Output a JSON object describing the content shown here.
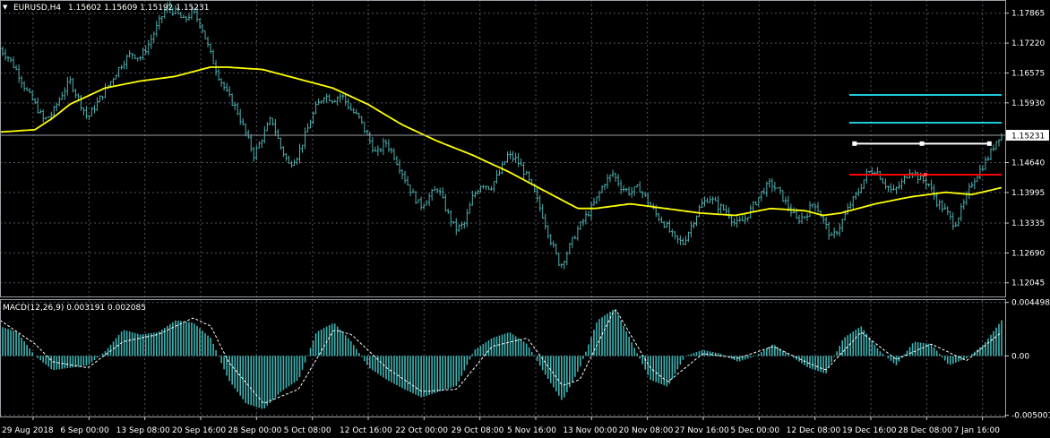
{
  "header": {
    "symbol_text": "EURUSD,H4",
    "ohlc_text": "1.15602 1.15609 1.15192 1.15231"
  },
  "colors": {
    "background": "#000000",
    "grid": "#6b7280",
    "candle": "#4fb0b0",
    "ma": "#ffff00",
    "macd_hist": "#3fb3b3",
    "macd_signal": "#ffffff",
    "cyan_level": "#20c8d8",
    "white_level": "#ffffff",
    "red_level": "#ff0000",
    "axis_text": "#ffffff"
  },
  "chart_data": [
    {
      "type": "line",
      "title": "EURUSD,H4",
      "subtitle": "1.15602 1.15609 1.15192 1.15231",
      "ylim": [
        1.1175,
        1.1815
      ],
      "y_ticks": [
        "1.17865",
        "1.17220",
        "1.16575",
        "1.15930",
        "1.14640",
        "1.13995",
        "1.13335",
        "1.12690",
        "1.12045"
      ],
      "current_price": "1.15231",
      "x_tick_labels": [
        "29 Aug 2018",
        "6 Sep 00:00",
        "13 Sep 08:00",
        "20 Sep 16:00",
        "28 Sep 00:00",
        "5 Oct 08:00",
        "12 Oct 16:00",
        "22 Oct 00:00",
        "29 Oct 08:00",
        "5 Nov 16:00",
        "13 Nov 00:00",
        "20 Nov 08:00",
        "27 Nov 16:00",
        "5 Dec 00:00",
        "12 Dec 08:00",
        "19 Dec 16:00",
        "28 Dec 08:00",
        "7 Jan 16:00"
      ],
      "price_path": [
        [
          0,
          1.171
        ],
        [
          0.5,
          1.169
        ],
        [
          1,
          1.166
        ],
        [
          1.5,
          1.162
        ],
        [
          2,
          1.159
        ],
        [
          2.5,
          1.1555
        ],
        [
          3,
          1.157
        ],
        [
          3.5,
          1.161
        ],
        [
          4,
          1.164
        ],
        [
          4.5,
          1.16
        ],
        [
          5,
          1.156
        ],
        [
          5.5,
          1.159
        ],
        [
          6,
          1.162
        ],
        [
          6.5,
          1.165
        ],
        [
          7,
          1.168
        ],
        [
          7.5,
          1.17
        ],
        [
          8,
          1.169
        ],
        [
          8.5,
          1.172
        ],
        [
          9,
          1.176
        ],
        [
          9.5,
          1.18
        ],
        [
          10,
          1.179
        ],
        [
          10.5,
          1.177
        ],
        [
          11,
          1.179
        ],
        [
          11.5,
          1.176
        ],
        [
          12,
          1.17
        ],
        [
          12.5,
          1.165
        ],
        [
          13,
          1.161
        ],
        [
          13.5,
          1.158
        ],
        [
          14,
          1.153
        ],
        [
          14.5,
          1.148
        ],
        [
          15,
          1.152
        ],
        [
          15.5,
          1.156
        ],
        [
          16,
          1.15
        ],
        [
          16.5,
          1.146
        ],
        [
          17,
          1.148
        ],
        [
          17.5,
          1.153
        ],
        [
          18,
          1.158
        ],
        [
          18.5,
          1.161
        ],
        [
          19,
          1.16
        ],
        [
          19.5,
          1.161
        ],
        [
          20,
          1.158
        ],
        [
          20.5,
          1.156
        ],
        [
          21,
          1.152
        ],
        [
          21.5,
          1.148
        ],
        [
          22,
          1.151
        ],
        [
          22.5,
          1.148
        ],
        [
          23,
          1.144
        ],
        [
          23.5,
          1.14
        ],
        [
          24,
          1.137
        ],
        [
          24.5,
          1.139
        ],
        [
          25,
          1.141
        ],
        [
          25.5,
          1.136
        ],
        [
          26,
          1.132
        ],
        [
          26.5,
          1.133
        ],
        [
          27,
          1.139
        ],
        [
          27.5,
          1.142
        ],
        [
          28,
          1.141
        ],
        [
          28.5,
          1.144
        ],
        [
          29,
          1.148
        ],
        [
          29.5,
          1.147
        ],
        [
          30,
          1.144
        ],
        [
          30.5,
          1.14
        ],
        [
          31,
          1.135
        ],
        [
          31.5,
          1.129
        ],
        [
          32,
          1.124
        ],
        [
          32.5,
          1.128
        ],
        [
          33,
          1.132
        ],
        [
          33.5,
          1.135
        ],
        [
          34,
          1.138
        ],
        [
          34.5,
          1.142
        ],
        [
          35,
          1.144
        ],
        [
          35.5,
          1.141
        ],
        [
          36,
          1.14
        ],
        [
          36.5,
          1.141
        ],
        [
          37,
          1.138
        ],
        [
          37.5,
          1.135
        ],
        [
          38,
          1.133
        ],
        [
          38.5,
          1.13
        ],
        [
          39,
          1.129
        ],
        [
          39.5,
          1.133
        ],
        [
          40,
          1.137
        ],
        [
          40.5,
          1.139
        ],
        [
          41,
          1.137
        ],
        [
          41.5,
          1.136
        ],
        [
          42,
          1.133
        ],
        [
          42.5,
          1.134
        ],
        [
          43,
          1.137
        ],
        [
          43.5,
          1.14
        ],
        [
          44,
          1.142
        ],
        [
          44.5,
          1.14
        ],
        [
          45,
          1.137
        ],
        [
          45.5,
          1.134
        ],
        [
          46,
          1.135
        ],
        [
          46.5,
          1.138
        ],
        [
          47,
          1.134
        ],
        [
          47.5,
          1.13
        ],
        [
          48,
          1.133
        ],
        [
          48.5,
          1.137
        ],
        [
          49,
          1.14
        ],
        [
          49.5,
          1.144
        ],
        [
          50,
          1.145
        ],
        [
          50.5,
          1.142
        ],
        [
          51,
          1.14
        ],
        [
          51.5,
          1.142
        ],
        [
          52,
          1.145
        ],
        [
          52.5,
          1.143
        ],
        [
          53,
          1.142
        ],
        [
          53.5,
          1.138
        ],
        [
          54,
          1.136
        ],
        [
          54.5,
          1.133
        ],
        [
          55,
          1.137
        ],
        [
          55.5,
          1.142
        ],
        [
          56,
          1.145
        ],
        [
          56.5,
          1.148
        ],
        [
          57,
          1.152
        ],
        [
          57.2,
          1.1523
        ]
      ],
      "x_range": [
        0,
        57.2
      ],
      "ma_path": [
        [
          0,
          1.153
        ],
        [
          2,
          1.1535
        ],
        [
          3,
          1.156
        ],
        [
          4,
          1.159
        ],
        [
          6,
          1.1625
        ],
        [
          8,
          1.164
        ],
        [
          10,
          1.165
        ],
        [
          12,
          1.167
        ],
        [
          13,
          1.167
        ],
        [
          15,
          1.1665
        ],
        [
          17,
          1.1645
        ],
        [
          19,
          1.1625
        ],
        [
          21,
          1.159
        ],
        [
          23,
          1.1545
        ],
        [
          25,
          1.151
        ],
        [
          27,
          1.148
        ],
        [
          29,
          1.1445
        ],
        [
          31,
          1.1405
        ],
        [
          33,
          1.1365
        ],
        [
          34,
          1.1365
        ],
        [
          36,
          1.1375
        ],
        [
          38,
          1.1365
        ],
        [
          40,
          1.1355
        ],
        [
          42,
          1.135
        ],
        [
          44,
          1.1365
        ],
        [
          46,
          1.136
        ],
        [
          47,
          1.135
        ],
        [
          48,
          1.1355
        ],
        [
          50,
          1.1375
        ],
        [
          52,
          1.139
        ],
        [
          54,
          1.14
        ],
        [
          55.5,
          1.1395
        ],
        [
          57.2,
          1.141
        ]
      ],
      "levels": [
        {
          "price": 1.161,
          "color_key": "cyan_level",
          "x_start": 48.5,
          "x_end": 57.2
        },
        {
          "price": 1.155,
          "color_key": "cyan_level",
          "x_start": 48.5,
          "x_end": 57.2
        },
        {
          "price": 1.1505,
          "color_key": "white_level",
          "x_start": 48.8,
          "x_end": 56.5
        },
        {
          "price": 1.1438,
          "color_key": "red_level",
          "x_start": 48.5,
          "x_end": 57.2
        }
      ]
    },
    {
      "type": "bar",
      "title": "MACD(12,26,9) 0.003191 0.002085",
      "ylim": [
        -0.0051,
        0.0047
      ],
      "y_ticks": [
        "0.004498",
        "0.00",
        "-0.005001"
      ],
      "hist_path": [
        [
          0,
          0.0025
        ],
        [
          1,
          0.002
        ],
        [
          2,
          0.0
        ],
        [
          3,
          -0.0012
        ],
        [
          4,
          -0.001
        ],
        [
          5,
          -0.0008
        ],
        [
          6,
          0.0004
        ],
        [
          7,
          0.0022
        ],
        [
          8,
          0.0018
        ],
        [
          9,
          0.002
        ],
        [
          10,
          0.003
        ],
        [
          11,
          0.0028
        ],
        [
          12,
          0.0015
        ],
        [
          13,
          -0.002
        ],
        [
          14,
          -0.004
        ],
        [
          15,
          -0.0045
        ],
        [
          16,
          -0.003
        ],
        [
          17,
          -0.002
        ],
        [
          18,
          0.002
        ],
        [
          19,
          0.0028
        ],
        [
          20,
          0.0012
        ],
        [
          21,
          -0.001
        ],
        [
          22,
          -0.002
        ],
        [
          23,
          -0.0028
        ],
        [
          24,
          -0.0035
        ],
        [
          25,
          -0.003
        ],
        [
          26,
          -0.0025
        ],
        [
          27,
          0.0005
        ],
        [
          28,
          0.0015
        ],
        [
          29,
          0.002
        ],
        [
          30,
          0.001
        ],
        [
          31,
          -0.0015
        ],
        [
          32,
          -0.0038
        ],
        [
          33,
          -0.001
        ],
        [
          34,
          0.003
        ],
        [
          35,
          0.004
        ],
        [
          36,
          0.001
        ],
        [
          37,
          -0.002
        ],
        [
          38,
          -0.0026
        ],
        [
          39,
          0.0
        ],
        [
          40,
          0.0005
        ],
        [
          41,
          0.0002
        ],
        [
          42,
          -0.0005
        ],
        [
          43,
          0.0
        ],
        [
          44,
          0.001
        ],
        [
          45,
          0.0
        ],
        [
          46,
          -0.001
        ],
        [
          47,
          -0.0015
        ],
        [
          48,
          0.0015
        ],
        [
          49,
          0.0025
        ],
        [
          50,
          0.0005
        ],
        [
          51,
          -0.0008
        ],
        [
          52,
          0.0012
        ],
        [
          53,
          0.001
        ],
        [
          54,
          -0.0008
        ],
        [
          55,
          -0.0002
        ],
        [
          56,
          0.001
        ],
        [
          57,
          0.003
        ]
      ],
      "signal_path": [
        [
          0,
          0.003
        ],
        [
          2,
          0.001
        ],
        [
          3,
          -0.0005
        ],
        [
          5,
          -0.001
        ],
        [
          7,
          0.0012
        ],
        [
          9,
          0.0018
        ],
        [
          11,
          0.0032
        ],
        [
          12,
          0.0025
        ],
        [
          13,
          -0.0005
        ],
        [
          15,
          -0.004
        ],
        [
          17,
          -0.0028
        ],
        [
          19,
          0.0022
        ],
        [
          20,
          0.0018
        ],
        [
          22,
          -0.001
        ],
        [
          24,
          -0.003
        ],
        [
          26,
          -0.0028
        ],
        [
          28,
          0.0008
        ],
        [
          30,
          0.0015
        ],
        [
          32,
          -0.0025
        ],
        [
          33,
          -0.002
        ],
        [
          35,
          0.004
        ],
        [
          37,
          -0.001
        ],
        [
          38,
          -0.0022
        ],
        [
          40,
          0.0002
        ],
        [
          42,
          -0.0002
        ],
        [
          44,
          0.0008
        ],
        [
          46,
          -0.0006
        ],
        [
          47,
          -0.0012
        ],
        [
          49,
          0.002
        ],
        [
          51,
          -0.0003
        ],
        [
          53,
          0.001
        ],
        [
          55,
          -0.0004
        ],
        [
          57,
          0.002
        ]
      ]
    }
  ]
}
